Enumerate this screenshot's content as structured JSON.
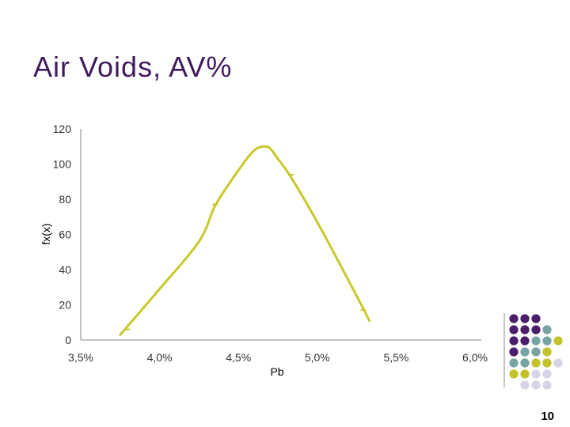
{
  "slide": {
    "title": "Air Voids, AV%",
    "page_number": "10"
  },
  "colors": {
    "title": "#3f1a5e",
    "line": "#c8c82a",
    "axis": "#888888",
    "dot_purple": "#4a1e6a",
    "dot_teal": "#78a3a3",
    "dot_olive": "#c2c22a",
    "dot_lavender": "#d6d4e6"
  },
  "chart_data": {
    "type": "line",
    "title": "",
    "xlabel": "Pb",
    "ylabel": "fx(x)",
    "x_tick_labels": [
      "3,5%",
      "4,0%",
      "4,5%",
      "5,0%",
      "5,5%",
      "6,0%"
    ],
    "y_tick_labels": [
      "0",
      "20",
      "40",
      "60",
      "80",
      "100",
      "120"
    ],
    "xlim": [
      3.5,
      6.0
    ],
    "ylim": [
      0,
      120
    ],
    "grid": false,
    "legend": "none",
    "series": [
      {
        "x": [
          3.75,
          4.0,
          4.25,
          4.35,
          4.45,
          4.52,
          4.58,
          4.62,
          4.66,
          4.7,
          4.75,
          4.83,
          5.0,
          5.25,
          5.33
        ],
        "y": [
          3,
          29,
          56,
          76,
          90,
          99,
          106,
          109,
          110,
          109,
          103,
          93,
          67,
          25,
          11
        ]
      }
    ],
    "tick_marks": [
      {
        "x": 3.79,
        "y": 6
      },
      {
        "x": 4.35,
        "y": 77
      },
      {
        "x": 4.83,
        "y": 94
      },
      {
        "x": 5.29,
        "y": 17
      }
    ]
  },
  "decoration": {
    "dot_grid": [
      [
        "",
        "purple",
        "purple",
        "purple",
        "",
        ""
      ],
      [
        "",
        "purple",
        "purple",
        "purple",
        "teal",
        ""
      ],
      [
        "",
        "purple",
        "purple",
        "teal",
        "teal",
        "olive"
      ],
      [
        "",
        "purple",
        "teal",
        "teal",
        "olive",
        ""
      ],
      [
        "",
        "teal",
        "teal",
        "olive",
        "olive",
        "lavender"
      ],
      [
        "",
        "olive",
        "olive",
        "lavender",
        "lavender",
        ""
      ],
      [
        "",
        "",
        "lavender",
        "lavender",
        "lavender",
        ""
      ]
    ]
  }
}
